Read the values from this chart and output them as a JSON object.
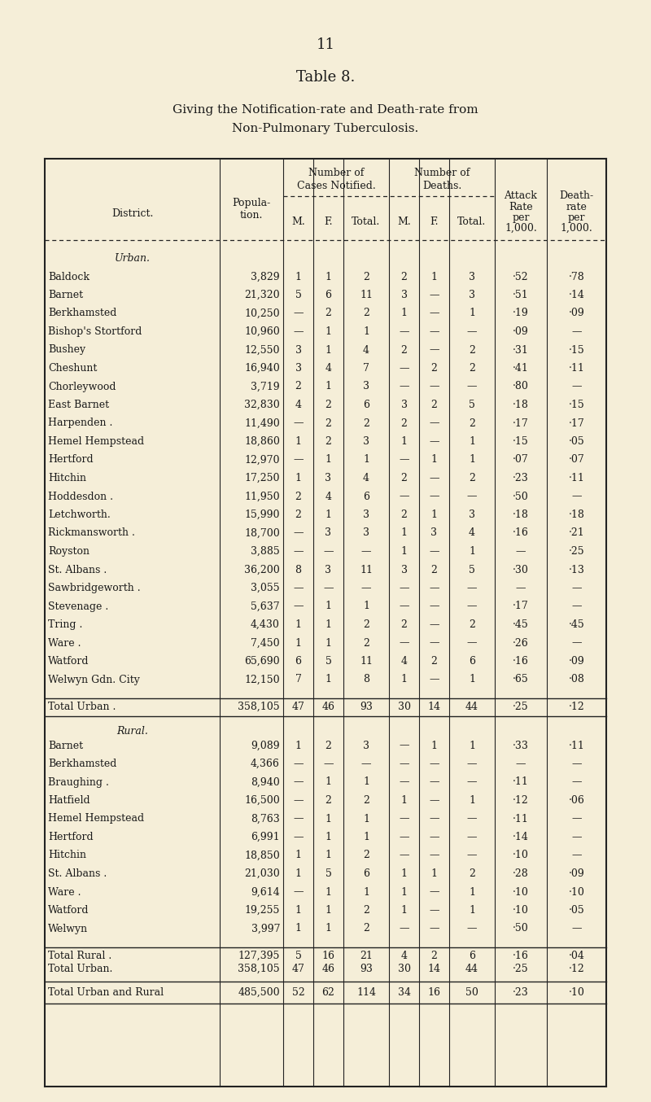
{
  "page_number": "11",
  "table_title": "Table 8.",
  "subtitle_line1": "Giving the Notification-rate and Death-rate from",
  "subtitle_line2": "Non-Pulmonary Tuberculosis.",
  "bg_color": "#f5eed8",
  "text_color": "#1a1a1a",
  "urban_label": "Urban.",
  "rural_label": "Rural.",
  "urban_rows": [
    [
      "Baldock",
      "3,829",
      "1",
      "1",
      "2",
      "2",
      "1",
      "3",
      "·52",
      "·78"
    ],
    [
      "Barnet",
      "21,320",
      "5",
      "6",
      "11",
      "3",
      "—",
      "3",
      "·51",
      "·14"
    ],
    [
      "Berkhamsted",
      "10,250",
      "—",
      "2",
      "2",
      "1",
      "—",
      "1",
      "·19",
      "·09"
    ],
    [
      "Bishop's Stortford",
      "10,960",
      "—",
      "1",
      "1",
      "—",
      "—",
      "—",
      "·09",
      "—"
    ],
    [
      "Bushey",
      "12,550",
      "3",
      "1",
      "4",
      "2",
      "—",
      "2",
      "·31",
      "·15"
    ],
    [
      "Cheshunt",
      "16,940",
      "3",
      "4",
      "7",
      "—",
      "2",
      "2",
      "·41",
      "·11"
    ],
    [
      "Chorleywood",
      "3,719",
      "2",
      "1",
      "3",
      "—",
      "—",
      "—",
      "·80",
      "—"
    ],
    [
      "East Barnet",
      "32,830",
      "4",
      "2",
      "6",
      "3",
      "2",
      "5",
      "·18",
      "·15"
    ],
    [
      "Harpenden .",
      "11,490",
      "—",
      "2",
      "2",
      "2",
      "—",
      "2",
      "·17",
      "·17"
    ],
    [
      "Hemel Hempstead",
      "18,860",
      "1",
      "2",
      "3",
      "1",
      "—",
      "1",
      "·15",
      "·05"
    ],
    [
      "Hertford",
      "12,970",
      "—",
      "1",
      "1",
      "—",
      "1",
      "1",
      "·07",
      "·07"
    ],
    [
      "Hitchin",
      "17,250",
      "1",
      "3",
      "4",
      "2",
      "—",
      "2",
      "·23",
      "·11"
    ],
    [
      "Hoddesdon .",
      "11,950",
      "2",
      "4",
      "6",
      "—",
      "—",
      "—",
      "·50",
      "—"
    ],
    [
      "Letchworth.",
      "15,990",
      "2",
      "1",
      "3",
      "2",
      "1",
      "3",
      "·18",
      "·18"
    ],
    [
      "Rickmansworth .",
      "18,700",
      "—",
      "3",
      "3",
      "1",
      "3",
      "4",
      "·16",
      "·21"
    ],
    [
      "Royston",
      "3,885",
      "—",
      "—",
      "—",
      "1",
      "—",
      "1",
      "—",
      "·25"
    ],
    [
      "St. Albans .",
      "36,200",
      "8",
      "3",
      "11",
      "3",
      "2",
      "5",
      "·30",
      "·13"
    ],
    [
      "Sawbridgeworth .",
      "3,055",
      "—",
      "—",
      "—",
      "—",
      "—",
      "—",
      "—",
      "—"
    ],
    [
      "Stevenage .",
      "5,637",
      "—",
      "1",
      "1",
      "—",
      "—",
      "—",
      "·17",
      "—"
    ],
    [
      "Tring .",
      "4,430",
      "1",
      "1",
      "2",
      "2",
      "—",
      "2",
      "·45",
      "·45"
    ],
    [
      "Ware .",
      "7,450",
      "1",
      "1",
      "2",
      "—",
      "—",
      "—",
      "·26",
      "—"
    ],
    [
      "Watford",
      "65,690",
      "6",
      "5",
      "11",
      "4",
      "2",
      "6",
      "·16",
      "·09"
    ],
    [
      "Welwyn Gdn. City",
      "12,150",
      "7",
      "1",
      "8",
      "1",
      "—",
      "1",
      "·65",
      "·08"
    ]
  ],
  "urban_total": [
    "Total Urban .",
    "358,105",
    "47",
    "46",
    "93",
    "30",
    "14",
    "44",
    "·25",
    "·12"
  ],
  "rural_rows": [
    [
      "Barnet",
      "9,089",
      "1",
      "2",
      "3",
      "—",
      "1",
      "1",
      "·33",
      "·11"
    ],
    [
      "Berkhamsted",
      "4,366",
      "—",
      "—",
      "—",
      "—",
      "—",
      "—",
      "—",
      "—"
    ],
    [
      "Braughing .",
      "8,940",
      "—",
      "1",
      "1",
      "—",
      "—",
      "—",
      "·11",
      "—"
    ],
    [
      "Hatfield",
      "16,500",
      "—",
      "2",
      "2",
      "1",
      "—",
      "1",
      "·12",
      "·06"
    ],
    [
      "Hemel Hempstead",
      "8,763",
      "—",
      "1",
      "1",
      "—",
      "—",
      "—",
      "·11",
      "—"
    ],
    [
      "Hertford",
      "6,991",
      "—",
      "1",
      "1",
      "—",
      "—",
      "—",
      "·14",
      "—"
    ],
    [
      "Hitchin",
      "18,850",
      "1",
      "1",
      "2",
      "—",
      "—",
      "—",
      "·10",
      "—"
    ],
    [
      "St. Albans .",
      "21,030",
      "1",
      "5",
      "6",
      "1",
      "1",
      "2",
      "·28",
      "·09"
    ],
    [
      "Ware .",
      "9,614",
      "—",
      "1",
      "1",
      "1",
      "—",
      "1",
      "·10",
      "·10"
    ],
    [
      "Watford",
      "19,255",
      "1",
      "1",
      "2",
      "1",
      "—",
      "1",
      "·10",
      "·05"
    ],
    [
      "Welwyn",
      "3,997",
      "1",
      "1",
      "2",
      "—",
      "—",
      "—",
      "·50",
      "—"
    ]
  ],
  "rural_total": [
    "Total Rural .",
    "127,395",
    "5",
    "16",
    "21",
    "4",
    "2",
    "6",
    "·16",
    "·04"
  ],
  "urban_total2": [
    "Total Urban.",
    "358,105",
    "47",
    "46",
    "93",
    "30",
    "14",
    "44",
    "·25",
    "·12"
  ],
  "grand_total": [
    "Total Urban and Rural",
    "485,500",
    "52",
    "62",
    "114",
    "34",
    "16",
    "50",
    "·23",
    "·10"
  ]
}
